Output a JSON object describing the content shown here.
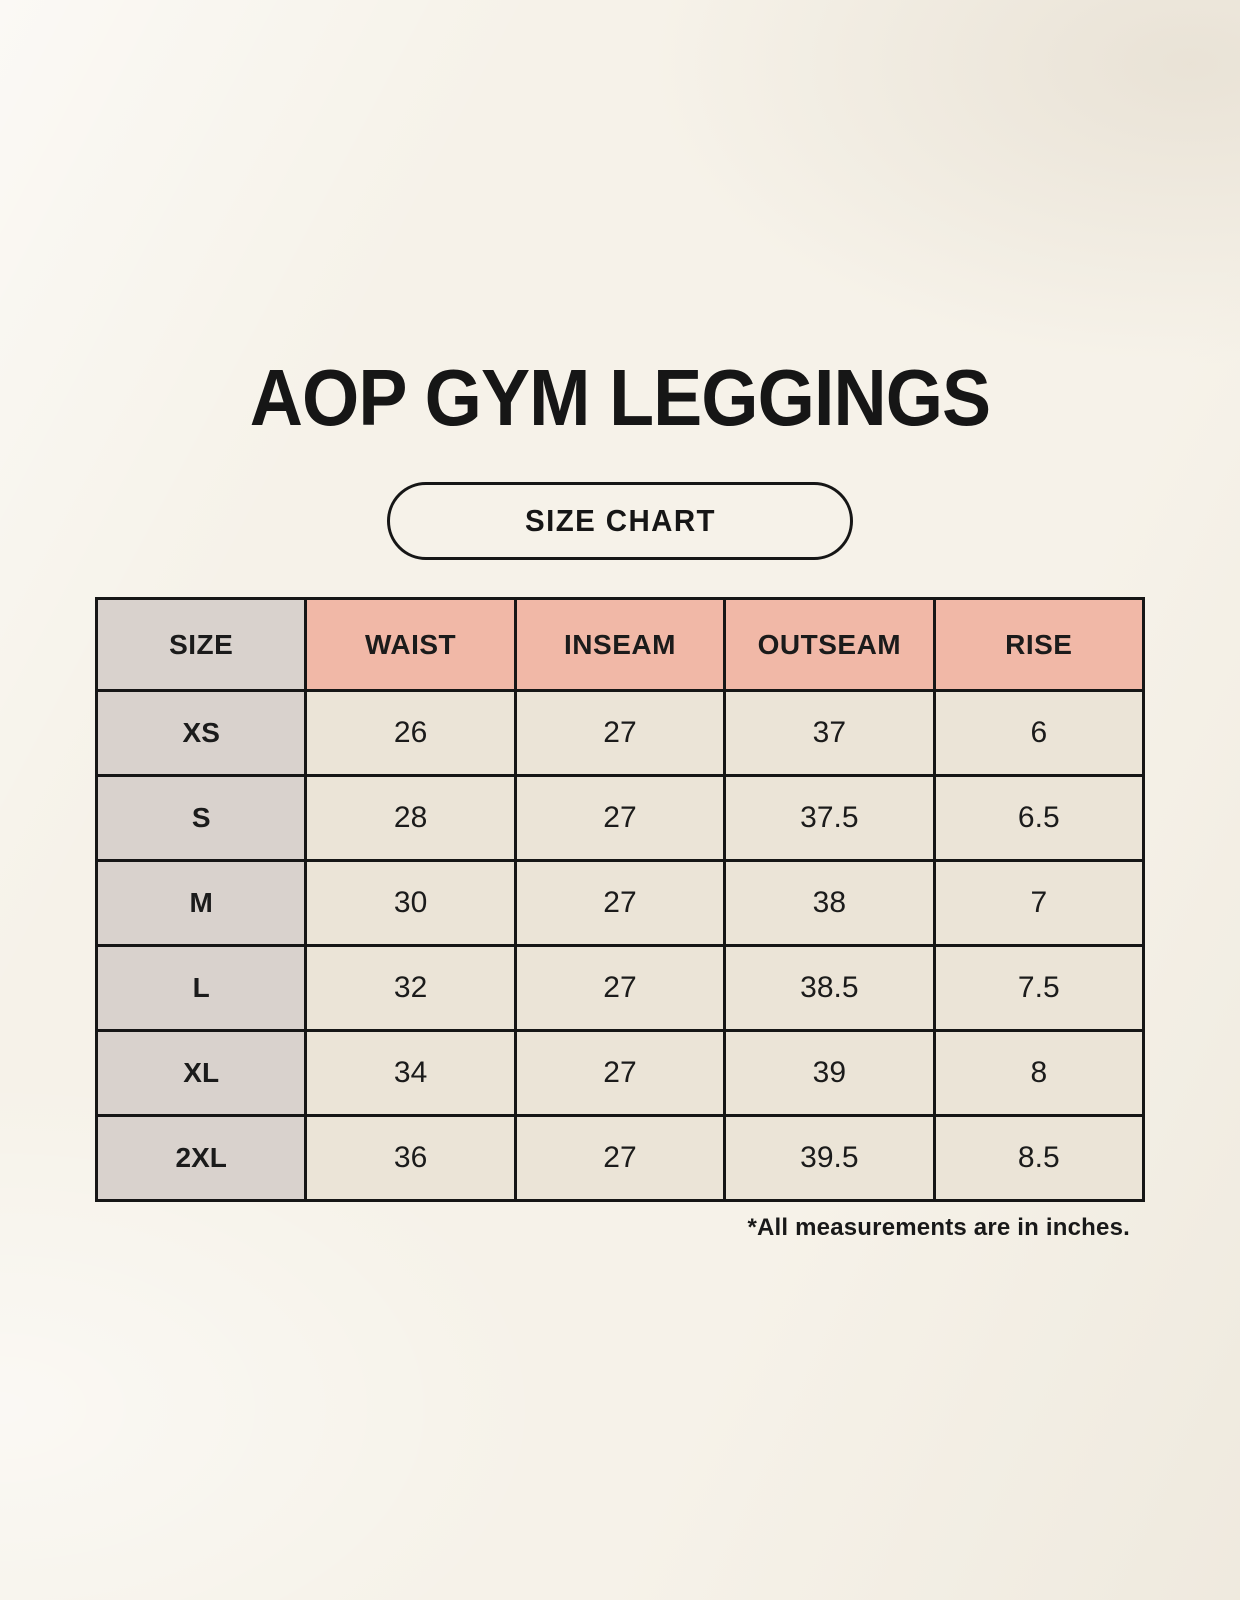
{
  "page": {
    "title": "AOP GYM LEGGINGS",
    "badge_label": "SIZE CHART",
    "footnote": "*All measurements are in inches."
  },
  "chart_data": {
    "type": "table",
    "title": "AOP GYM LEGGINGS — SIZE CHART",
    "units": "inches",
    "headers": [
      "SIZE",
      "WAIST",
      "INSEAM",
      "OUTSEAM",
      "RISE"
    ],
    "rows": [
      [
        "XS",
        "26",
        "27",
        "37",
        "6"
      ],
      [
        "S",
        "28",
        "27",
        "37.5",
        "6.5"
      ],
      [
        "M",
        "30",
        "27",
        "38",
        "7"
      ],
      [
        "L",
        "32",
        "27",
        "38.5",
        "7.5"
      ],
      [
        "XL",
        "34",
        "27",
        "39",
        "8"
      ],
      [
        "2XL",
        "36",
        "27",
        "39.5",
        "8.5"
      ]
    ]
  },
  "colors": {
    "background": "#f6f2e9",
    "header_pink": "#f1b8a7",
    "label_gray": "#d9d2cd",
    "cell_cream": "#ebe4d7",
    "border_black": "#161616",
    "text": "#1b1b1b"
  }
}
